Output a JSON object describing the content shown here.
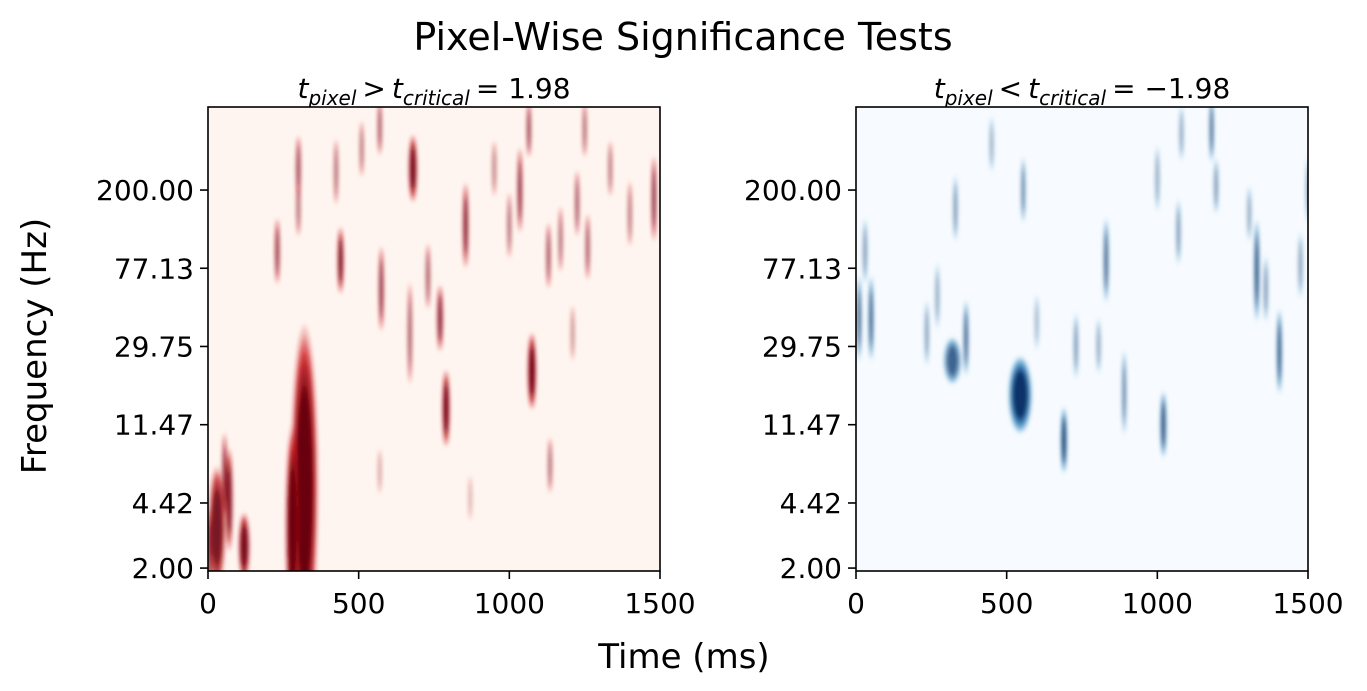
{
  "figure": {
    "title": "Pixel-Wise Significance Tests",
    "xlabel": "Time (ms)",
    "ylabel": "Frequency (Hz)"
  },
  "chart_data": [
    {
      "type": "heatmap",
      "title_parts": {
        "var": "t",
        "sub1": "pixel",
        "op": ">",
        "sub2": "critical",
        "rhs": "= 1.98"
      },
      "colormap": "Reds",
      "colors": {
        "background": "#fff5f0",
        "mid": "#cb181d",
        "peak": "#67000d"
      },
      "x_range": [
        0,
        1500
      ],
      "x_ticks": [
        0,
        500,
        1000,
        1500
      ],
      "x_tick_labels": [
        "0",
        "500",
        "1000",
        "1500"
      ],
      "y_scale": "log",
      "y_range": [
        1.93,
        550
      ],
      "y_ticks": [
        2.0,
        4.42,
        11.47,
        29.75,
        77.13,
        200.0
      ],
      "y_tick_labels": [
        "2.00",
        "4.42",
        "11.47",
        "29.75",
        "77.13",
        "200.00"
      ],
      "blobs": [
        {
          "t": 320,
          "f": 5.4,
          "w": 45,
          "h": 3.5,
          "v": 1.0
        },
        {
          "t": 280,
          "f": 3.3,
          "w": 22,
          "h": 2.2,
          "v": 0.95
        },
        {
          "t": 70,
          "f": 4.6,
          "w": 12,
          "h": 1.5,
          "v": 0.85
        },
        {
          "t": 30,
          "f": 3.3,
          "w": 28,
          "h": 1.6,
          "v": 0.85
        },
        {
          "t": 120,
          "f": 2.6,
          "w": 18,
          "h": 1.3,
          "v": 0.9
        },
        {
          "t": 5,
          "f": 2.5,
          "w": 10,
          "h": 1.4,
          "v": 0.7
        },
        {
          "t": 55,
          "f": 6.2,
          "w": 8,
          "h": 1.4,
          "v": 0.8
        },
        {
          "t": 1075,
          "f": 22,
          "w": 14,
          "h": 1.35,
          "v": 0.95
        },
        {
          "t": 790,
          "f": 14,
          "w": 12,
          "h": 1.35,
          "v": 0.95
        },
        {
          "t": 1135,
          "f": 7,
          "w": 6,
          "h": 1.25,
          "v": 0.6
        },
        {
          "t": 570,
          "f": 6.5,
          "w": 4,
          "h": 1.2,
          "v": 0.3
        },
        {
          "t": 870,
          "f": 4.7,
          "w": 3,
          "h": 1.2,
          "v": 0.25
        },
        {
          "t": 680,
          "f": 260,
          "w": 14,
          "h": 1.3,
          "v": 0.9
        },
        {
          "t": 300,
          "f": 260,
          "w": 8,
          "h": 1.3,
          "v": 0.7
        },
        {
          "t": 300,
          "f": 160,
          "w": 6,
          "h": 1.25,
          "v": 0.6
        },
        {
          "t": 425,
          "f": 250,
          "w": 6,
          "h": 1.3,
          "v": 0.6
        },
        {
          "t": 440,
          "f": 85,
          "w": 10,
          "h": 1.3,
          "v": 0.9
        },
        {
          "t": 230,
          "f": 95,
          "w": 8,
          "h": 1.3,
          "v": 0.75
        },
        {
          "t": 575,
          "f": 60,
          "w": 8,
          "h": 1.4,
          "v": 0.8
        },
        {
          "t": 670,
          "f": 35,
          "w": 6,
          "h": 1.5,
          "v": 0.7
        },
        {
          "t": 770,
          "f": 42,
          "w": 10,
          "h": 1.3,
          "v": 0.8
        },
        {
          "t": 730,
          "f": 70,
          "w": 6,
          "h": 1.3,
          "v": 0.7
        },
        {
          "t": 855,
          "f": 130,
          "w": 9,
          "h": 1.4,
          "v": 0.85
        },
        {
          "t": 1035,
          "f": 200,
          "w": 8,
          "h": 1.4,
          "v": 0.8
        },
        {
          "t": 1000,
          "f": 130,
          "w": 6,
          "h": 1.3,
          "v": 0.6
        },
        {
          "t": 1130,
          "f": 90,
          "w": 7,
          "h": 1.3,
          "v": 0.7
        },
        {
          "t": 1225,
          "f": 170,
          "w": 6,
          "h": 1.3,
          "v": 0.7
        },
        {
          "t": 1170,
          "f": 110,
          "w": 5,
          "h": 1.3,
          "v": 0.6
        },
        {
          "t": 1480,
          "f": 180,
          "w": 8,
          "h": 1.4,
          "v": 0.8
        },
        {
          "t": 1400,
          "f": 150,
          "w": 6,
          "h": 1.3,
          "v": 0.55
        },
        {
          "t": 1260,
          "f": 100,
          "w": 6,
          "h": 1.3,
          "v": 0.7
        },
        {
          "t": 1065,
          "f": 420,
          "w": 5,
          "h": 1.25,
          "v": 0.8
        },
        {
          "t": 1250,
          "f": 420,
          "w": 5,
          "h": 1.25,
          "v": 0.6
        },
        {
          "t": 570,
          "f": 430,
          "w": 5,
          "h": 1.25,
          "v": 0.7
        },
        {
          "t": 510,
          "f": 330,
          "w": 5,
          "h": 1.25,
          "v": 0.55
        },
        {
          "t": 1210,
          "f": 35,
          "w": 4,
          "h": 1.25,
          "v": 0.4
        },
        {
          "t": 950,
          "f": 260,
          "w": 5,
          "h": 1.25,
          "v": 0.5
        },
        {
          "t": 1335,
          "f": 260,
          "w": 5,
          "h": 1.25,
          "v": 0.55
        }
      ]
    },
    {
      "type": "heatmap",
      "title_parts": {
        "var": "t",
        "sub1": "pixel",
        "op": "<",
        "sub2": "critical",
        "rhs": "= −1.98"
      },
      "colormap": "Blues",
      "colors": {
        "background": "#f7fbff",
        "mid": "#4292c6",
        "peak": "#08306b"
      },
      "x_range": [
        0,
        1500
      ],
      "x_ticks": [
        0,
        500,
        1000,
        1500
      ],
      "x_tick_labels": [
        "0",
        "500",
        "1000",
        "1500"
      ],
      "y_scale": "log",
      "y_range": [
        1.93,
        550
      ],
      "y_ticks": [
        2.0,
        4.42,
        11.47,
        29.75,
        77.13,
        200.0
      ],
      "y_tick_labels": [
        "2.00",
        "4.42",
        "11.47",
        "29.75",
        "77.13",
        "200.00"
      ],
      "blobs": [
        {
          "t": 545,
          "f": 16.5,
          "w": 40,
          "h": 1.35,
          "v": 1.0
        },
        {
          "t": 320,
          "f": 25,
          "w": 30,
          "h": 1.2,
          "v": 0.7
        },
        {
          "t": 690,
          "f": 9.5,
          "w": 10,
          "h": 1.3,
          "v": 0.95
        },
        {
          "t": 1020,
          "f": 11.5,
          "w": 10,
          "h": 1.3,
          "v": 0.85
        },
        {
          "t": 10,
          "f": 42,
          "w": 8,
          "h": 1.4,
          "v": 0.8
        },
        {
          "t": 50,
          "f": 42,
          "w": 8,
          "h": 1.4,
          "v": 0.85
        },
        {
          "t": 365,
          "f": 33,
          "w": 8,
          "h": 1.35,
          "v": 0.8
        },
        {
          "t": 1405,
          "f": 28,
          "w": 8,
          "h": 1.4,
          "v": 0.9
        },
        {
          "t": 1330,
          "f": 75,
          "w": 8,
          "h": 1.5,
          "v": 0.95
        },
        {
          "t": 830,
          "f": 85,
          "w": 8,
          "h": 1.4,
          "v": 0.8
        },
        {
          "t": 890,
          "f": 17,
          "w": 6,
          "h": 1.4,
          "v": 0.7
        },
        {
          "t": 1070,
          "f": 120,
          "w": 6,
          "h": 1.3,
          "v": 0.6
        },
        {
          "t": 555,
          "f": 200,
          "w": 6,
          "h": 1.3,
          "v": 0.7
        },
        {
          "t": 330,
          "f": 160,
          "w": 6,
          "h": 1.3,
          "v": 0.6
        },
        {
          "t": 730,
          "f": 30,
          "w": 6,
          "h": 1.3,
          "v": 0.6
        },
        {
          "t": 1195,
          "f": 210,
          "w": 5,
          "h": 1.25,
          "v": 0.6
        },
        {
          "t": 1500,
          "f": 200,
          "w": 6,
          "h": 1.3,
          "v": 0.55
        },
        {
          "t": 1180,
          "f": 420,
          "w": 6,
          "h": 1.3,
          "v": 0.85
        },
        {
          "t": 1305,
          "f": 150,
          "w": 5,
          "h": 1.25,
          "v": 0.5
        },
        {
          "t": 1360,
          "f": 60,
          "w": 5,
          "h": 1.3,
          "v": 0.6
        },
        {
          "t": 1475,
          "f": 80,
          "w": 5,
          "h": 1.3,
          "v": 0.55
        },
        {
          "t": 235,
          "f": 35,
          "w": 5,
          "h": 1.3,
          "v": 0.55
        },
        {
          "t": 270,
          "f": 55,
          "w": 5,
          "h": 1.3,
          "v": 0.5
        },
        {
          "t": 30,
          "f": 95,
          "w": 5,
          "h": 1.3,
          "v": 0.6
        },
        {
          "t": 600,
          "f": 40,
          "w": 4,
          "h": 1.25,
          "v": 0.4
        },
        {
          "t": 1000,
          "f": 230,
          "w": 5,
          "h": 1.3,
          "v": 0.5
        },
        {
          "t": 805,
          "f": 30,
          "w": 5,
          "h": 1.25,
          "v": 0.5
        },
        {
          "t": 1080,
          "f": 400,
          "w": 5,
          "h": 1.25,
          "v": 0.5
        },
        {
          "t": 450,
          "f": 350,
          "w": 4,
          "h": 1.25,
          "v": 0.45
        }
      ]
    }
  ]
}
